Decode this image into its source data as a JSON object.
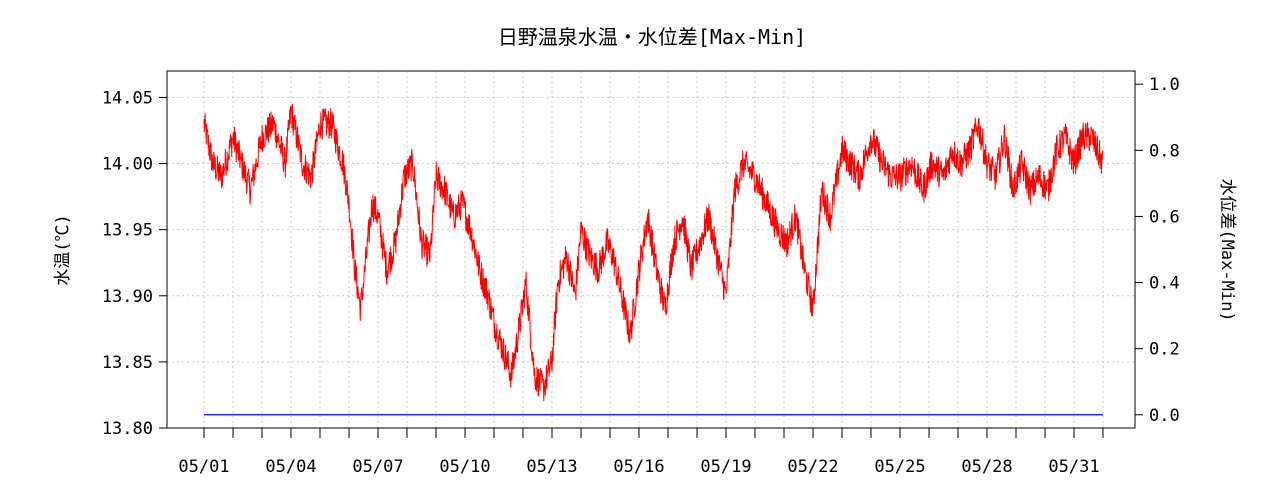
{
  "chart_data": {
    "type": "line",
    "title": "日野温泉水温・水位差[Max-Min]",
    "ylabel_left": "水温(℃)",
    "ylabel_right": "水位差(Max-Min)",
    "x_ticks": [
      "05/01",
      "05/04",
      "05/07",
      "05/10",
      "05/13",
      "05/16",
      "05/19",
      "05/22",
      "05/25",
      "05/28",
      "05/31"
    ],
    "x_range_days": [
      0.0,
      31.0
    ],
    "ylim_left": [
      13.8,
      14.07
    ],
    "yticks_left": [
      "13.80",
      "13.85",
      "13.90",
      "13.95",
      "14.00",
      "14.05"
    ],
    "ylim_right": [
      -0.04,
      1.04
    ],
    "yticks_right": [
      "0.0",
      "0.2",
      "0.4",
      "0.6",
      "0.8",
      "1.0"
    ],
    "grid": true,
    "series": [
      {
        "axis": "left",
        "color": "#ff0000",
        "noise_amplitude": 0.012,
        "day": [
          0.0,
          0.3,
          0.6,
          1.0,
          1.3,
          1.6,
          2.0,
          2.4,
          2.8,
          3.0,
          3.4,
          3.7,
          4.0,
          4.4,
          4.8,
          5.0,
          5.2,
          5.4,
          5.6,
          5.8,
          6.0,
          6.3,
          6.6,
          6.9,
          7.2,
          7.5,
          7.8,
          8.0,
          8.3,
          8.6,
          8.9,
          9.2,
          9.5,
          9.8,
          10.0,
          10.3,
          10.6,
          10.9,
          11.1,
          11.4,
          11.7,
          12.0,
          12.2,
          12.5,
          12.8,
          13.0,
          13.3,
          13.6,
          13.9,
          14.1,
          14.4,
          14.7,
          15.0,
          15.3,
          15.6,
          15.9,
          16.2,
          16.5,
          16.8,
          17.1,
          17.4,
          17.7,
          18.0,
          18.3,
          18.6,
          19.0,
          19.4,
          19.8,
          20.1,
          20.4,
          20.7,
          21.0,
          21.3,
          21.6,
          22.0,
          22.3,
          22.6,
          23.0,
          23.4,
          23.7,
          24.0,
          24.4,
          24.8,
          25.1,
          25.5,
          25.8,
          26.1,
          26.4,
          26.7,
          27.0,
          27.3,
          27.6,
          27.9,
          28.2,
          28.5,
          28.8,
          29.1,
          29.4,
          29.7,
          30.0,
          30.3,
          30.6,
          31.0
        ],
        "value": [
          14.03,
          14.0,
          13.99,
          14.02,
          14.0,
          13.98,
          14.02,
          14.03,
          14.0,
          14.04,
          14.0,
          13.99,
          14.03,
          14.03,
          14.0,
          13.97,
          13.92,
          13.89,
          13.93,
          13.97,
          13.96,
          13.92,
          13.94,
          13.99,
          14.0,
          13.94,
          13.93,
          13.99,
          13.98,
          13.96,
          13.97,
          13.95,
          13.92,
          13.9,
          13.88,
          13.86,
          13.84,
          13.88,
          13.91,
          13.84,
          13.83,
          13.85,
          13.91,
          13.93,
          13.9,
          13.95,
          13.93,
          13.92,
          13.94,
          13.93,
          13.9,
          13.87,
          13.92,
          13.96,
          13.92,
          13.89,
          13.94,
          13.96,
          13.92,
          13.94,
          13.96,
          13.93,
          13.9,
          13.98,
          14.0,
          13.99,
          13.97,
          13.95,
          13.94,
          13.96,
          13.92,
          13.89,
          13.98,
          13.96,
          14.01,
          14.0,
          13.99,
          14.02,
          14.0,
          13.99,
          13.99,
          14.0,
          13.98,
          14.0,
          13.99,
          14.01,
          14.0,
          14.01,
          14.03,
          14.0,
          13.99,
          14.02,
          13.98,
          14.0,
          13.98,
          13.99,
          13.98,
          14.01,
          14.02,
          14.0,
          14.02,
          14.02,
          14.0
        ]
      },
      {
        "axis": "right",
        "color": "#0000ff",
        "day": [
          0.0,
          31.0
        ],
        "value": [
          0.0,
          0.0
        ]
      }
    ]
  }
}
